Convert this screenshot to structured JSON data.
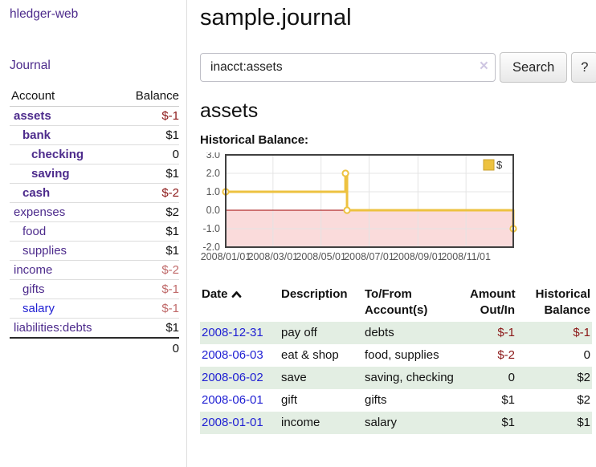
{
  "app": {
    "brand": "hledger-web",
    "nav_journal": "Journal"
  },
  "colors": {
    "accent_purple": "#4d2b8c",
    "link_blue": "#1f1fd3",
    "negative_strong": "#8b1717",
    "negative_muted": "#c06a6a",
    "row_stripe_green": "#e3eee3"
  },
  "sidebar": {
    "accounts_header": {
      "account": "Account",
      "balance": "Balance"
    },
    "accounts": [
      {
        "name": "assets",
        "indent": 1,
        "balance": "$-1",
        "bold": true,
        "negative": true,
        "muted": false,
        "blue": false
      },
      {
        "name": "bank",
        "indent": 2,
        "balance": "$1",
        "bold": true,
        "negative": false,
        "muted": false,
        "blue": false
      },
      {
        "name": "checking",
        "indent": 3,
        "balance": "0",
        "bold": true,
        "negative": false,
        "muted": false,
        "blue": false
      },
      {
        "name": "saving",
        "indent": 3,
        "balance": "$1",
        "bold": true,
        "negative": false,
        "muted": false,
        "blue": false
      },
      {
        "name": "cash",
        "indent": 2,
        "balance": "$-2",
        "bold": true,
        "negative": true,
        "muted": false,
        "blue": false
      },
      {
        "name": "expenses",
        "indent": 1,
        "balance": "$2",
        "bold": false,
        "negative": false,
        "muted": false,
        "blue": false
      },
      {
        "name": "food",
        "indent": 2,
        "balance": "$1",
        "bold": false,
        "negative": false,
        "muted": false,
        "blue": false
      },
      {
        "name": "supplies",
        "indent": 2,
        "balance": "$1",
        "bold": false,
        "negative": false,
        "muted": false,
        "blue": false
      },
      {
        "name": "income",
        "indent": 1,
        "balance": "$-2",
        "bold": false,
        "negative": true,
        "muted": true,
        "blue": false
      },
      {
        "name": "gifts",
        "indent": 2,
        "balance": "$-1",
        "bold": false,
        "negative": true,
        "muted": true,
        "blue": false
      },
      {
        "name": "salary",
        "indent": 2,
        "balance": "$-1",
        "bold": false,
        "negative": true,
        "muted": true,
        "blue": true
      },
      {
        "name": "liabilities:debts",
        "indent": 1,
        "balance": "$1",
        "bold": false,
        "negative": false,
        "muted": false,
        "blue": false
      }
    ],
    "total": "0"
  },
  "header": {
    "title": "sample.journal"
  },
  "search": {
    "value": "inacct:assets",
    "clear_icon": "×",
    "button": "Search",
    "help_button": "?"
  },
  "account_page": {
    "heading": "assets",
    "chart_label": "Historical Balance:"
  },
  "chart_data": {
    "type": "line",
    "style": "step-after",
    "title": "Historical Balance",
    "series": [
      {
        "name": "$",
        "color": "#edc240",
        "points": [
          [
            "2008-01-01",
            1
          ],
          [
            "2008-06-01",
            2
          ],
          [
            "2008-06-03",
            0
          ],
          [
            "2008-12-31",
            -1
          ]
        ]
      }
    ],
    "xlim": [
      "2008-01-01",
      "2008-12-31"
    ],
    "ylim": [
      -2,
      3
    ],
    "y_ticks": [
      3.0,
      2.0,
      1.0,
      0.0,
      -1.0,
      -2.0
    ],
    "x_ticks": [
      {
        "date": "2008-01-01",
        "label": "2008/01/01"
      },
      {
        "date": "2008-03-01",
        "label": "2008/03/01"
      },
      {
        "date": "2008-05-01",
        "label": "2008/05/01"
      },
      {
        "date": "2008-07-01",
        "label": "2008/07/01"
      },
      {
        "date": "2008-09-01",
        "label": "2008/09/01"
      },
      {
        "date": "2008-11-01",
        "label": "2008/11/01"
      }
    ],
    "legend": {
      "position": "top-right",
      "entries": [
        "$"
      ]
    },
    "grid": true,
    "plot_border_color": "#404040",
    "grid_color": "#e4e4e4",
    "tick_color": "#555555",
    "negative_region_color": "#fadbdb",
    "zero_line_color": "#a00000"
  },
  "register": {
    "columns": [
      {
        "label": "Date",
        "sorted_asc": true
      },
      {
        "label": "Description"
      },
      {
        "label": "To/From Account(s)"
      },
      {
        "label": "Amount Out/In"
      },
      {
        "label": "Historical Balance"
      }
    ],
    "rows": [
      {
        "date": "2008-12-31",
        "description": "pay off",
        "accounts": "debts",
        "amount": "$-1",
        "amount_negative": true,
        "balance": "$-1",
        "balance_negative": true
      },
      {
        "date": "2008-06-03",
        "description": "eat & shop",
        "accounts": "food, supplies",
        "amount": "$-2",
        "amount_negative": true,
        "balance": "0",
        "balance_negative": false
      },
      {
        "date": "2008-06-02",
        "description": "save",
        "accounts": "saving, checking",
        "amount": "0",
        "amount_negative": false,
        "balance": "$2",
        "balance_negative": false
      },
      {
        "date": "2008-06-01",
        "description": "gift",
        "accounts": "gifts",
        "amount": "$1",
        "amount_negative": false,
        "balance": "$2",
        "balance_negative": false
      },
      {
        "date": "2008-01-01",
        "description": "income",
        "accounts": "salary",
        "amount": "$1",
        "amount_negative": false,
        "balance": "$1",
        "balance_negative": false
      }
    ]
  }
}
